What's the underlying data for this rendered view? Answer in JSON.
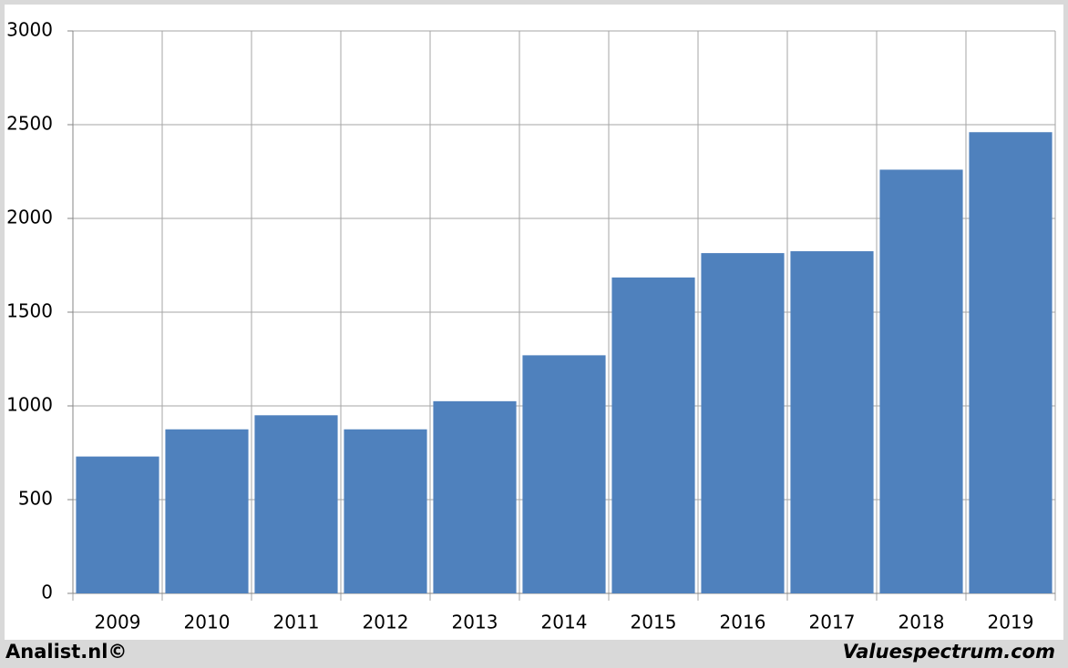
{
  "chart_data": {
    "type": "bar",
    "categories": [
      "2009",
      "2010",
      "2011",
      "2012",
      "2013",
      "2014",
      "2015",
      "2016",
      "2017",
      "2018",
      "2019"
    ],
    "values": [
      730,
      875,
      950,
      875,
      1025,
      1270,
      1685,
      1815,
      1825,
      2260,
      2460
    ],
    "color": "#4f81bd",
    "ylim": [
      0,
      3000
    ],
    "yticks": [
      0,
      500,
      1000,
      1500,
      2000,
      2500,
      3000
    ],
    "grid": true,
    "annotations": [
      "Analist.nl©",
      "Valuespectrum.com"
    ]
  }
}
